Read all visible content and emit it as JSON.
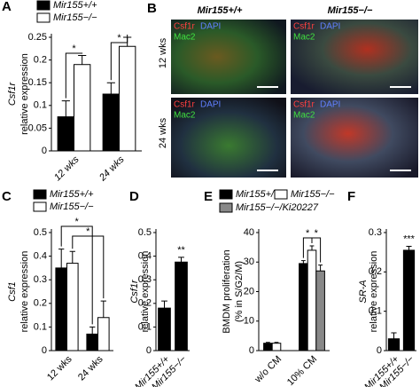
{
  "chart_data": [
    {
      "type": "bar",
      "panel": "A",
      "ylabel": [
        "Csf1r",
        "relative expression"
      ],
      "categories": [
        "12 wks",
        "24 wks"
      ],
      "series": [
        {
          "name": "Mir155+/+",
          "color": "#000000",
          "values": [
            0.075,
            0.125
          ],
          "errors": [
            0.035,
            0.025
          ]
        },
        {
          "name": "Mir155−/−",
          "color": "#ffffff",
          "values": [
            0.19,
            0.23
          ],
          "errors": [
            0.02,
            0.02
          ]
        }
      ],
      "ylim": [
        0,
        0.25
      ],
      "yticks": [
        0,
        0.05,
        0.1,
        0.15,
        0.2,
        0.25
      ],
      "annotations": [
        "*",
        "*"
      ]
    },
    {
      "type": "bar",
      "panel": "C",
      "ylabel": [
        "Csf1",
        "relative expression"
      ],
      "categories": [
        "12 wks",
        "24 wks"
      ],
      "series": [
        {
          "name": "Mir155+/+",
          "color": "#000000",
          "values": [
            0.35,
            0.07
          ],
          "errors": [
            0.08,
            0.03
          ]
        },
        {
          "name": "Mir155−/−",
          "color": "#ffffff",
          "values": [
            0.37,
            0.14
          ],
          "errors": [
            0.05,
            0.07
          ]
        }
      ],
      "ylim": [
        0,
        0.5
      ],
      "yticks": [
        0,
        0.1,
        0.2,
        0.3,
        0.4,
        0.5
      ],
      "annotations": [
        "*",
        "*"
      ]
    },
    {
      "type": "bar",
      "panel": "D",
      "ylabel": [
        "Csf1r",
        "relative expression"
      ],
      "categories": [
        "Mir155+/+",
        "Mir155−/−"
      ],
      "color": "#000000",
      "values": [
        0.18,
        0.375
      ],
      "errors": [
        0.03,
        0.02
      ],
      "ylim": [
        0,
        0.5
      ],
      "yticks": [
        0,
        0.1,
        0.2,
        0.3,
        0.4,
        0.5
      ],
      "annotations": [
        "**"
      ]
    },
    {
      "type": "bar",
      "panel": "E",
      "ylabel": [
        "BMDM proliferation",
        "(% in S/G2/M)"
      ],
      "categories": [
        "w/o CM",
        "10% CM"
      ],
      "series": [
        {
          "name": "Mir155+/+",
          "color": "#000000",
          "values": [
            2.5,
            29.5
          ],
          "errors": [
            0.3,
            1
          ]
        },
        {
          "name": "Mir155−/−",
          "color": "#ffffff",
          "values": [
            2.5,
            34
          ],
          "errors": [
            0.3,
            1.5
          ]
        },
        {
          "name": "Mir155−/−/Ki20227",
          "color": "#888888",
          "values": [
            null,
            27
          ],
          "errors": [
            null,
            2
          ]
        }
      ],
      "ylim": [
        0,
        40
      ],
      "yticks": [
        0,
        10,
        20,
        30,
        40
      ],
      "annotations": [
        "*",
        "*"
      ]
    },
    {
      "type": "bar",
      "panel": "F",
      "ylabel": [
        "SR-A",
        "relative expression"
      ],
      "categories": [
        "Mir155+/+",
        "Mir155−/−"
      ],
      "color": "#000000",
      "values": [
        0.03,
        0.255
      ],
      "errors": [
        0.015,
        0.01
      ],
      "ylim": [
        0,
        0.3
      ],
      "yticks": [
        0,
        0.1,
        0.2,
        0.3
      ],
      "annotations": [
        "***"
      ]
    }
  ],
  "image_panel": {
    "panel": "B",
    "columns": [
      "Mir155+/+",
      "Mir155−/−"
    ],
    "rows": [
      "12 wks",
      "24 wks"
    ],
    "stains": [
      "Csf1r",
      "DAPI",
      "Mac2"
    ]
  }
}
